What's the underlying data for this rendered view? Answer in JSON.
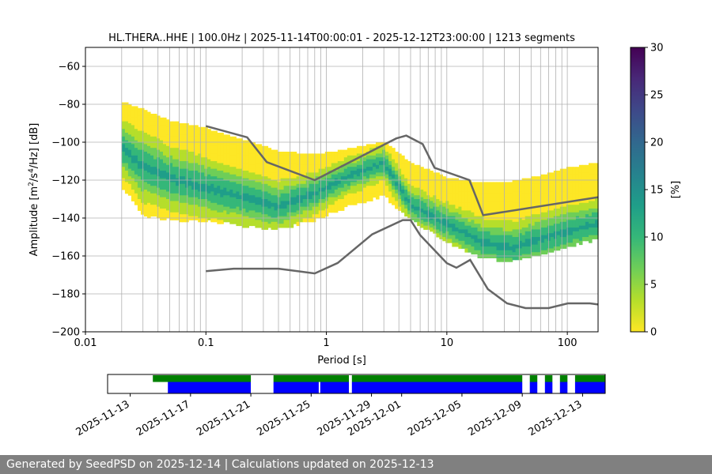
{
  "footer": {
    "generated_text": "Generated by SeedPSD on 2025-12-14 | Calculations updated on 2025-12-13"
  },
  "chart_data": [
    {
      "type": "heatmap",
      "title": "HL.THERA..HHE | 100.0Hz | 2025-11-14T00:00:01 - 2025-12-12T23:00:00 | 1213 segments",
      "xlabel": "Period [s]",
      "ylabel_parts": [
        "Amplitude [m",
        "2",
        "/s",
        "4",
        "/Hz] [dB]"
      ],
      "xscale": "log",
      "xlim": [
        0.01,
        180
      ],
      "ylim": [
        -200,
        -50
      ],
      "grid": true,
      "x_ticks": [
        {
          "value": 0.01,
          "label": "0.01"
        },
        {
          "value": 0.1,
          "label": "0.1"
        },
        {
          "value": 1,
          "label": "1"
        },
        {
          "value": 10,
          "label": "10"
        },
        {
          "value": 100,
          "label": "100"
        }
      ],
      "y_ticks": [
        {
          "value": -60,
          "label": "−60"
        },
        {
          "value": -80,
          "label": "−80"
        },
        {
          "value": -100,
          "label": "−100"
        },
        {
          "value": -120,
          "label": "−120"
        },
        {
          "value": -140,
          "label": "−140"
        },
        {
          "value": -160,
          "label": "−160"
        },
        {
          "value": -180,
          "label": "−180"
        },
        {
          "value": -200,
          "label": "−200"
        }
      ],
      "colorbar": {
        "label": "[%]",
        "range": [
          0,
          30
        ],
        "ticks": [
          "0",
          "5",
          "10",
          "15",
          "20",
          "25",
          "30"
        ],
        "colormap": "viridis_r",
        "colors": [
          "#fde725",
          "#b5de2b",
          "#6ece58",
          "#35b779",
          "#1f9e89",
          "#26828e",
          "#31688e",
          "#3e4989",
          "#482878",
          "#440154"
        ]
      },
      "psd_band": {
        "description_points": [
          {
            "period": 0.02,
            "low": -122,
            "high": -78,
            "mode": -102
          },
          {
            "period": 0.03,
            "low": -138,
            "high": -82,
            "mode": -112
          },
          {
            "period": 0.05,
            "low": -140,
            "high": -88,
            "mode": -118
          },
          {
            "period": 0.1,
            "low": -140,
            "high": -92,
            "mode": -123
          },
          {
            "period": 0.2,
            "low": -143,
            "high": -98,
            "mode": -128
          },
          {
            "period": 0.4,
            "low": -145,
            "high": -104,
            "mode": -133
          },
          {
            "period": 0.8,
            "low": -140,
            "high": -106,
            "mode": -126
          },
          {
            "period": 1.5,
            "low": -133,
            "high": -103,
            "mode": -117
          },
          {
            "period": 3,
            "low": -127,
            "high": -99,
            "mode": -110
          },
          {
            "period": 5,
            "low": -140,
            "high": -110,
            "mode": -132
          },
          {
            "period": 10,
            "low": -152,
            "high": -118,
            "mode": -142
          },
          {
            "period": 20,
            "low": -160,
            "high": -121,
            "mode": -152
          },
          {
            "period": 35,
            "low": -162,
            "high": -120,
            "mode": -155
          },
          {
            "period": 60,
            "low": -158,
            "high": -117,
            "mode": -150
          },
          {
            "period": 100,
            "low": -154,
            "high": -113,
            "mode": -146
          },
          {
            "period": 180,
            "low": -150,
            "high": -110,
            "mode": -142
          }
        ]
      },
      "nhnm": [
        {
          "period": 0.1,
          "value": -91.5
        },
        {
          "period": 0.22,
          "value": -97.4
        },
        {
          "period": 0.32,
          "value": -110.5
        },
        {
          "period": 0.8,
          "value": -120
        },
        {
          "period": 3.8,
          "value": -98
        },
        {
          "period": 4.6,
          "value": -96.5
        },
        {
          "period": 6.3,
          "value": -101
        },
        {
          "period": 7.9,
          "value": -113.5
        },
        {
          "period": 15.4,
          "value": -120
        },
        {
          "period": 20,
          "value": -138.5
        },
        {
          "period": 180,
          "value": -129
        }
      ],
      "nlnm": [
        {
          "period": 0.1,
          "value": -168
        },
        {
          "period": 0.17,
          "value": -166.7
        },
        {
          "period": 0.4,
          "value": -166.7
        },
        {
          "period": 0.8,
          "value": -169.2
        },
        {
          "period": 1.24,
          "value": -163.7
        },
        {
          "period": 2.4,
          "value": -148.6
        },
        {
          "period": 4.3,
          "value": -141.1
        },
        {
          "period": 5.0,
          "value": -141.1
        },
        {
          "period": 6.0,
          "value": -149
        },
        {
          "period": 10,
          "value": -163.8
        },
        {
          "period": 12,
          "value": -166.2
        },
        {
          "period": 15.6,
          "value": -162.1
        },
        {
          "period": 21.9,
          "value": -177.5
        },
        {
          "period": 31.6,
          "value": -185
        },
        {
          "period": 45,
          "value": -187.5
        },
        {
          "period": 70,
          "value": -187.5
        },
        {
          "period": 101,
          "value": -185
        },
        {
          "period": 154,
          "value": -185
        },
        {
          "period": 180,
          "value": -185.6
        }
      ]
    },
    {
      "type": "timeline",
      "tick_labels": [
        "2025-11-13",
        "2025-11-17",
        "2025-11-21",
        "2025-11-25",
        "2025-11-29",
        "2025-12-01",
        "2025-12-05",
        "2025-12-09",
        "2025-12-13"
      ],
      "tick_day_offsets": [
        0,
        4,
        8,
        12,
        16,
        18,
        22,
        26,
        30
      ],
      "range_days": [
        -1.5,
        31.5
      ],
      "start_date": "2025-11-13",
      "green_segments": [
        [
          1.5,
          8.0
        ],
        [
          9.5,
          14.5
        ],
        [
          14.7,
          26.0
        ],
        [
          26.5,
          27.0
        ],
        [
          27.5,
          28.0
        ],
        [
          28.5,
          29.0
        ],
        [
          29.5,
          33.2
        ]
      ],
      "blue_segments": [
        [
          2.5,
          8.0
        ],
        [
          9.5,
          12.5
        ],
        [
          12.6,
          14.5
        ],
        [
          14.7,
          26.0
        ],
        [
          26.5,
          27.0
        ],
        [
          27.5,
          28.0
        ],
        [
          28.5,
          29.0
        ],
        [
          29.5,
          33.2
        ]
      ],
      "green_color": "#008000",
      "blue_color": "#0000ff"
    }
  ]
}
